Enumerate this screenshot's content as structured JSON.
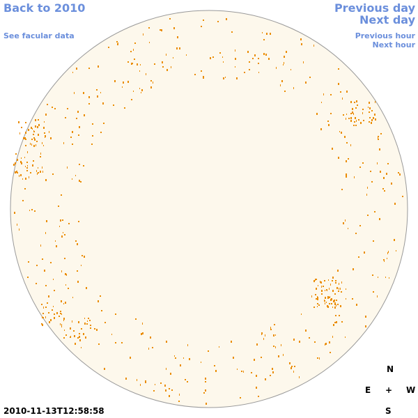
{
  "links": {
    "back": "Back to 2010",
    "facular_data": "See facular data",
    "previous_day": "Previous day",
    "next_day": "Next day",
    "previous_hour": "Previous hour",
    "next_hour": "Next hour"
  },
  "timestamp": "2010-11-13T12:58:58",
  "compass": {
    "north": "N",
    "east": "E",
    "center": "+",
    "west": "W",
    "south": "S"
  }
}
